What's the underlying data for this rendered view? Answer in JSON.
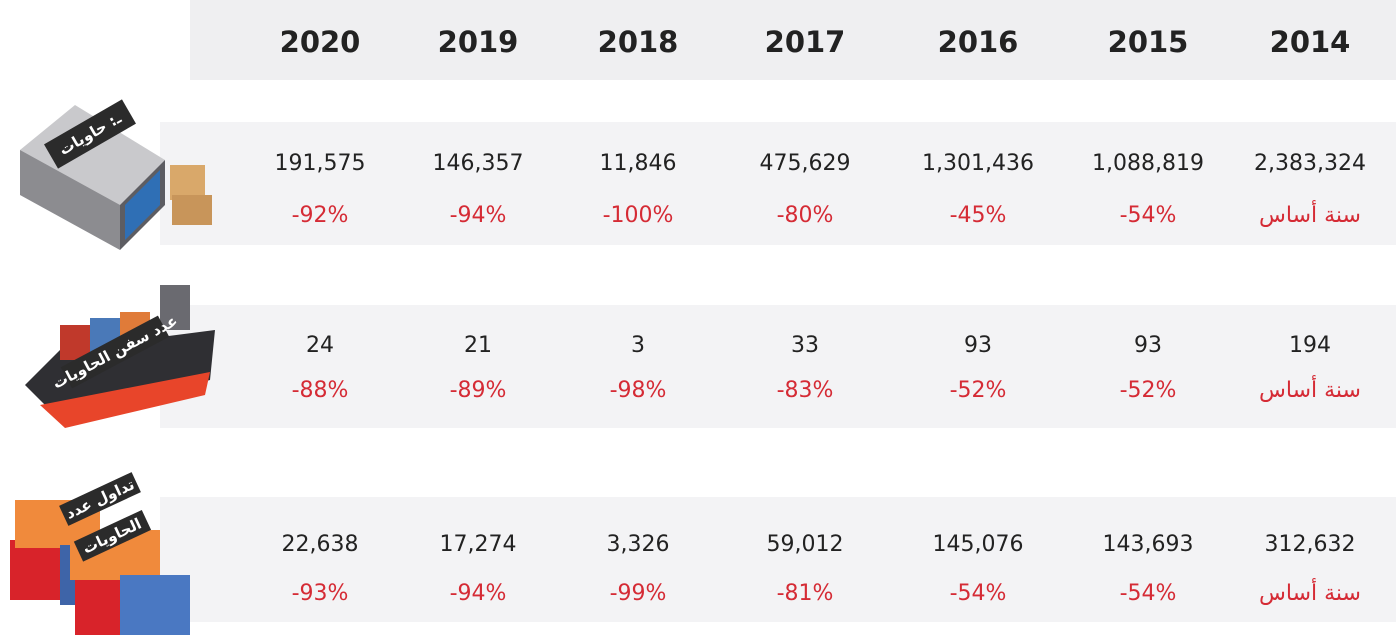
{
  "header": {
    "years": [
      "2014",
      "2015",
      "2016",
      "2017",
      "2018",
      "2019",
      "2020"
    ]
  },
  "rows": [
    {
      "icon_label": "ـ: حاويات",
      "values": [
        "2,383,324",
        "1,088,819",
        "1,301,436",
        "475,629",
        "11,846",
        "146,357",
        "191,575"
      ],
      "changes": [
        "سنة أساس",
        "-54%",
        "-45%",
        "-80%",
        "-100%",
        "-94%",
        "-92%"
      ]
    },
    {
      "icon_label": "عدد سفن الحاويات",
      "values": [
        "194",
        "93",
        "93",
        "33",
        "3",
        "21",
        "24"
      ],
      "changes": [
        "سنة أساس",
        "-52%",
        "-52%",
        "-83%",
        "-98%",
        "-89%",
        "-88%"
      ]
    },
    {
      "icon_label": [
        "تداول عدد",
        "الحاويات"
      ],
      "values": [
        "312,632",
        "143,693",
        "145,076",
        "59,012",
        "3,326",
        "17,274",
        "22,638"
      ],
      "changes": [
        "سنة أساس",
        "-54%",
        "-54%",
        "-81%",
        "-99%",
        "-94%",
        "-93%"
      ]
    }
  ]
}
